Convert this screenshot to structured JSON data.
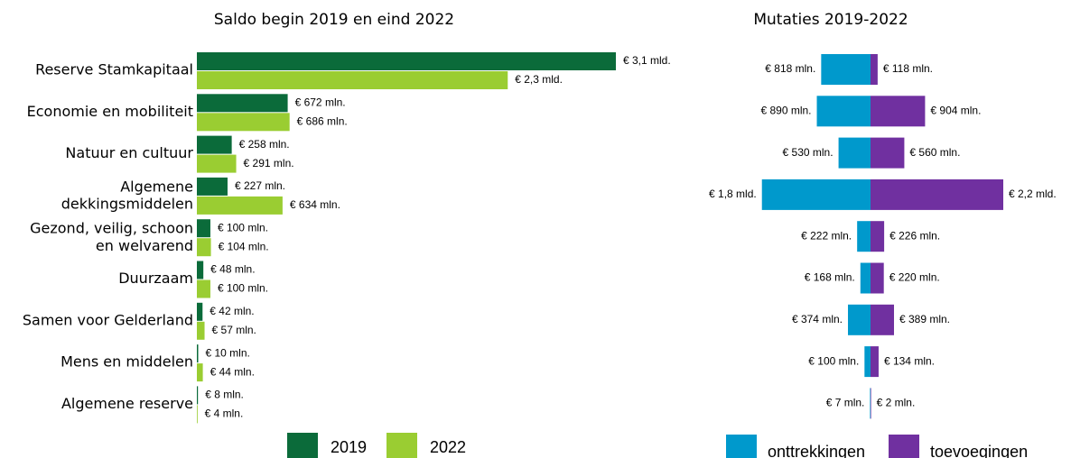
{
  "chart_data": [
    {
      "type": "hbar",
      "title": "Saldo begin 2019 en eind 2022",
      "categories": [
        "Reserve Stamkapitaal",
        "Economie en mobiliteit",
        "Natuur en cultuur",
        "Algemene\ndekkingsmiddelen",
        "Gezond, veilig, schoon\nen welvarend",
        "Duurzaam",
        "Samen voor Gelderland",
        "Mens en middelen",
        "Algemene reserve"
      ],
      "series": [
        {
          "name": "2019",
          "color": "#0b6b3a",
          "values": [
            3100,
            672,
            258,
            227,
            100,
            48,
            42,
            10,
            8
          ],
          "value_labels": [
            "€ 3,1 mld.",
            "€ 672 mln.",
            "€ 258 mln.",
            "€ 227 mln.",
            "€ 100 mln.",
            "€ 48 mln.",
            "€ 42 mln.",
            "€ 10 mln.",
            "€ 8 mln."
          ]
        },
        {
          "name": "2022",
          "color": "#9acd32",
          "values": [
            2300,
            686,
            291,
            634,
            104,
            100,
            57,
            44,
            4
          ],
          "value_labels": [
            "€ 2,3 mld.",
            "€ 686 mln.",
            "€ 291 mln.",
            "€ 634 mln.",
            "€ 104 mln.",
            "€ 100 mln.",
            "€ 57 mln.",
            "€ 44 mln.",
            "€ 4 mln."
          ]
        }
      ]
    },
    {
      "type": "diverging",
      "title": "Mutaties 2019-2022",
      "series": [
        {
          "name": "onttrekkingen",
          "color": "#0099cc",
          "values": [
            818,
            890,
            530,
            1800,
            222,
            168,
            374,
            100,
            7
          ],
          "value_labels": [
            "€ 818 mln.",
            "€ 890 mln.",
            "€ 530 mln.",
            "€ 1,8 mld.",
            "€ 222 mln.",
            "€ 168 mln.",
            "€ 374 mln.",
            "€ 100 mln.",
            "€ 7 mln."
          ]
        },
        {
          "name": "toevoegingen",
          "color": "#7030a0",
          "values": [
            118,
            904,
            560,
            2200,
            226,
            220,
            389,
            134,
            2
          ],
          "value_labels": [
            "€ 118 mln.",
            "€ 904 mln.",
            "€ 560 mln.",
            "€ 2,2 mld.",
            "€ 226 mln.",
            "€ 220 mln.",
            "€ 389 mln.",
            "€ 134 mln.",
            "€ 2 mln."
          ]
        }
      ]
    }
  ]
}
